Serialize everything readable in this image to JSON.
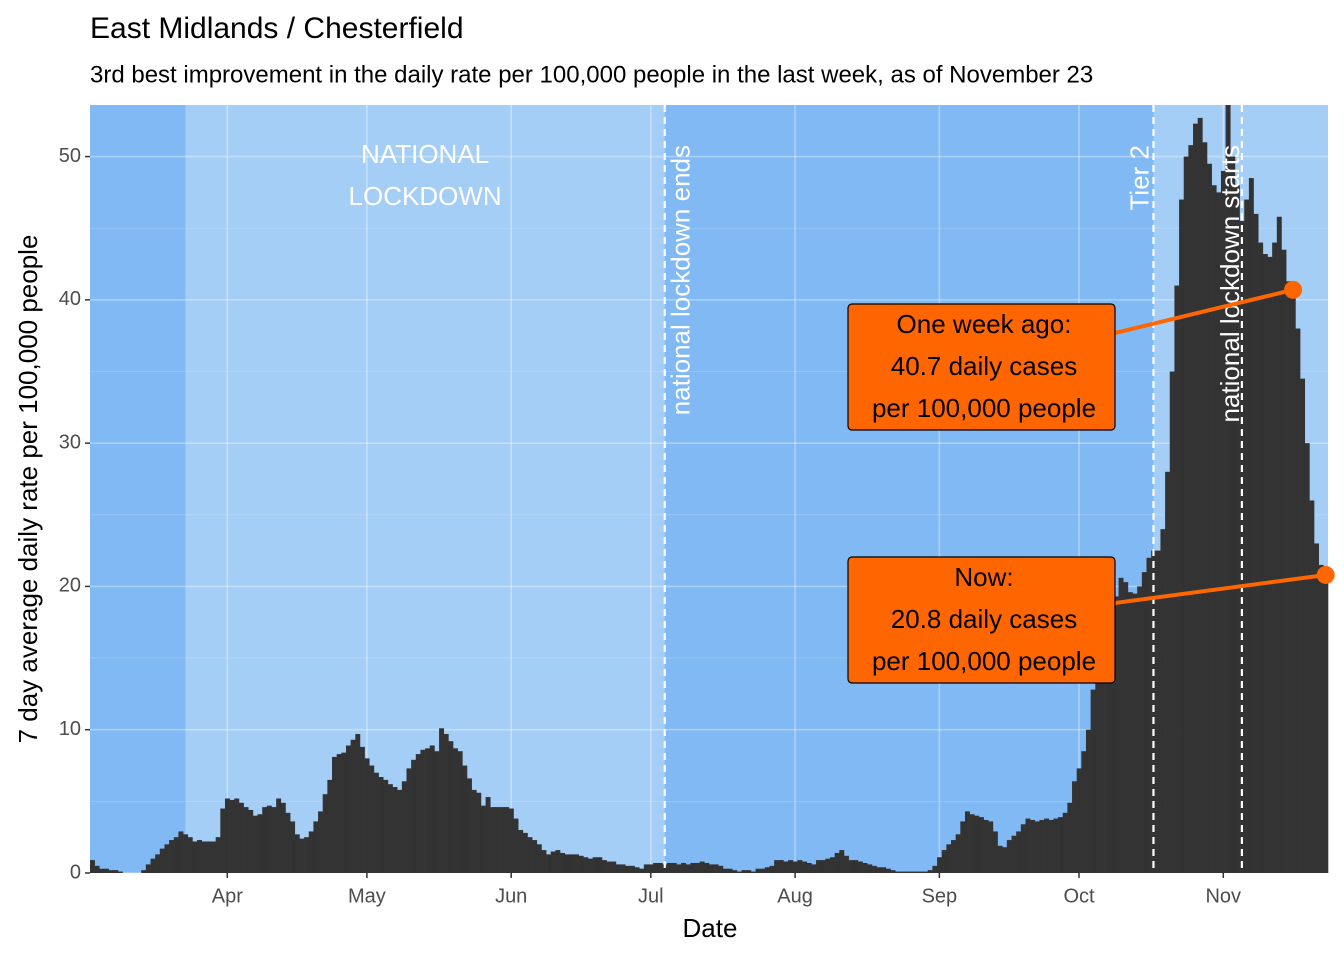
{
  "chart_data": {
    "type": "bar",
    "title": "East Midlands / Chesterfield",
    "subtitle": "3rd best improvement in the daily rate per 100,000 people in the last week, as of November 23",
    "xlabel": "Date",
    "ylabel": "7 day average daily rate per 100,000 people",
    "color": "#333333",
    "grid": true,
    "xlim": [
      -0.5,
      265.5
    ],
    "ylim": [
      0,
      53.6
    ],
    "yticks": [
      0,
      10,
      20,
      30,
      40,
      50
    ],
    "xticks": [
      {
        "value": 29,
        "label": "Apr"
      },
      {
        "value": 59,
        "label": "May"
      },
      {
        "value": 90,
        "label": "Jun"
      },
      {
        "value": 120,
        "label": "Jul"
      },
      {
        "value": 151,
        "label": "Aug"
      },
      {
        "value": 182,
        "label": "Sep"
      },
      {
        "value": 212,
        "label": "Oct"
      },
      {
        "value": 243,
        "label": "Nov"
      }
    ],
    "shaded_regions": [
      {
        "start": 20,
        "end": 123,
        "lines": [
          "NATIONAL",
          "LOCKDOWN"
        ]
      },
      {
        "start": 228,
        "end": 265.5
      }
    ],
    "vlines": [
      {
        "x": 123,
        "label": "national lockdown ends"
      },
      {
        "x": 228,
        "label": "Tier 2"
      },
      {
        "x": 247,
        "label": "national lockdown starts"
      }
    ],
    "annotations": [
      {
        "x": 258,
        "y": 40.7,
        "lines": [
          "One week ago:",
          "40.7 daily cases",
          "per 100,000 people"
        ]
      },
      {
        "x": 265,
        "y": 20.8,
        "lines": [
          "Now:",
          "20.8 daily cases",
          "per 100,000 people"
        ]
      }
    ],
    "x": [
      0,
      1,
      2,
      3,
      4,
      5,
      6,
      7,
      8,
      9,
      10,
      11,
      12,
      13,
      14,
      15,
      16,
      17,
      18,
      19,
      20,
      21,
      22,
      23,
      24,
      25,
      26,
      27,
      28,
      29,
      30,
      31,
      32,
      33,
      34,
      35,
      36,
      37,
      38,
      39,
      40,
      41,
      42,
      43,
      44,
      45,
      46,
      47,
      48,
      49,
      50,
      51,
      52,
      53,
      54,
      55,
      56,
      57,
      58,
      59,
      60,
      61,
      62,
      63,
      64,
      65,
      66,
      67,
      68,
      69,
      70,
      71,
      72,
      73,
      74,
      75,
      76,
      77,
      78,
      79,
      80,
      81,
      82,
      83,
      84,
      85,
      86,
      87,
      88,
      89,
      90,
      91,
      92,
      93,
      94,
      95,
      96,
      97,
      98,
      99,
      100,
      101,
      102,
      103,
      104,
      105,
      106,
      107,
      108,
      109,
      110,
      111,
      112,
      113,
      114,
      115,
      116,
      117,
      118,
      119,
      120,
      121,
      122,
      123,
      124,
      125,
      126,
      127,
      128,
      129,
      130,
      131,
      132,
      133,
      134,
      135,
      136,
      137,
      138,
      139,
      140,
      141,
      142,
      143,
      144,
      145,
      146,
      147,
      148,
      149,
      150,
      151,
      152,
      153,
      154,
      155,
      156,
      157,
      158,
      159,
      160,
      161,
      162,
      163,
      164,
      165,
      166,
      167,
      168,
      169,
      170,
      171,
      172,
      173,
      174,
      175,
      176,
      177,
      178,
      179,
      180,
      181,
      182,
      183,
      184,
      185,
      186,
      187,
      188,
      189,
      190,
      191,
      192,
      193,
      194,
      195,
      196,
      197,
      198,
      199,
      200,
      201,
      202,
      203,
      204,
      205,
      206,
      207,
      208,
      209,
      210,
      211,
      212,
      213,
      214,
      215,
      216,
      217,
      218,
      219,
      220,
      221,
      222,
      223,
      224,
      225,
      226,
      227,
      228,
      229,
      230,
      231,
      232,
      233,
      234,
      235,
      236,
      237,
      238,
      239,
      240,
      241,
      242,
      243,
      244,
      245,
      246,
      247,
      248,
      249,
      250,
      251,
      252,
      253,
      254,
      255,
      256,
      257,
      258,
      259,
      260,
      261,
      262,
      263,
      264,
      265
    ],
    "values": [
      0.9,
      0.5,
      0.3,
      0.3,
      0.2,
      0.2,
      0.1,
      0,
      0,
      0,
      0,
      0.2,
      0.6,
      1.0,
      1.3,
      1.7,
      2.0,
      2.3,
      2.5,
      2.9,
      2.7,
      2.5,
      2.2,
      2.3,
      2.2,
      2.2,
      2.2,
      2.5,
      4.5,
      5.2,
      5.1,
      5.2,
      4.9,
      4.6,
      4.4,
      4.0,
      4.1,
      4.6,
      4.7,
      4.6,
      5.2,
      4.9,
      4.2,
      3.6,
      2.7,
      2.4,
      2.5,
      2.9,
      3.6,
      4.3,
      5.5,
      6.5,
      8.1,
      8.3,
      8.4,
      8.9,
      9.3,
      9.7,
      8.8,
      8.0,
      7.5,
      7.0,
      6.7,
      6.5,
      6.2,
      6.0,
      5.8,
      6.4,
      7.3,
      7.9,
      8.3,
      8.6,
      8.7,
      8.9,
      8.5,
      10.1,
      9.7,
      9.2,
      8.7,
      8.5,
      7.5,
      6.6,
      5.8,
      5.6,
      4.7,
      5.3,
      4.6,
      4.6,
      4.6,
      4.6,
      4.5,
      3.8,
      3.0,
      2.8,
      2.5,
      2.3,
      2.0,
      1.6,
      1.3,
      1.5,
      1.6,
      1.4,
      1.3,
      1.3,
      1.3,
      1.2,
      1.1,
      1.0,
      1.1,
      1.1,
      0.9,
      0.8,
      0.8,
      0.6,
      0.6,
      0.5,
      0.5,
      0.4,
      0.3,
      0.6,
      0.6,
      0.7,
      0.7,
      0.6,
      0.7,
      0.7,
      0.6,
      0.7,
      0.6,
      0.7,
      0.7,
      0.8,
      0.7,
      0.6,
      0.6,
      0.5,
      0.3,
      0.3,
      0.2,
      0.1,
      0.2,
      0.2,
      0.1,
      0.3,
      0.3,
      0.4,
      0.5,
      0.9,
      0.9,
      0.8,
      0.9,
      0.8,
      0.9,
      0.8,
      0.7,
      0.6,
      0.9,
      0.9,
      1.0,
      1.1,
      1.4,
      1.6,
      1.2,
      0.9,
      0.9,
      0.8,
      0.7,
      0.6,
      0.5,
      0.4,
      0.4,
      0.3,
      0.2,
      0.1,
      0.1,
      0.1,
      0.1,
      0.1,
      0.1,
      0.1,
      0.2,
      0.5,
      1.1,
      1.6,
      2.0,
      2.3,
      2.7,
      3.6,
      4.3,
      4.1,
      4.0,
      3.9,
      3.7,
      3.6,
      2.9,
      1.9,
      1.8,
      2.3,
      2.6,
      2.9,
      3.4,
      3.8,
      3.7,
      3.6,
      3.7,
      3.8,
      3.7,
      3.8,
      3.9,
      4.2,
      4.9,
      6.4,
      7.3,
      8.5,
      10.0,
      12.8,
      14.5,
      15.8,
      17.0,
      18.0,
      19.3,
      20.6,
      20.3,
      19.6,
      19.5,
      20.0,
      21.0,
      22.0,
      22.5,
      22.5,
      24.0,
      28.0,
      35.0,
      41.0,
      47.0,
      50.0,
      50.8,
      52.3,
      52.7,
      51.0,
      49.5,
      48.0,
      47.5,
      49.0,
      53.6,
      50.0,
      48.0,
      45.5,
      47.0,
      48.5,
      46.0,
      44.0,
      43.2,
      43.0,
      44.0,
      45.8,
      43.5,
      41.3,
      40.7,
      38.0,
      34.5,
      30.0,
      26.0,
      23.0,
      21.5,
      20.8
    ]
  }
}
